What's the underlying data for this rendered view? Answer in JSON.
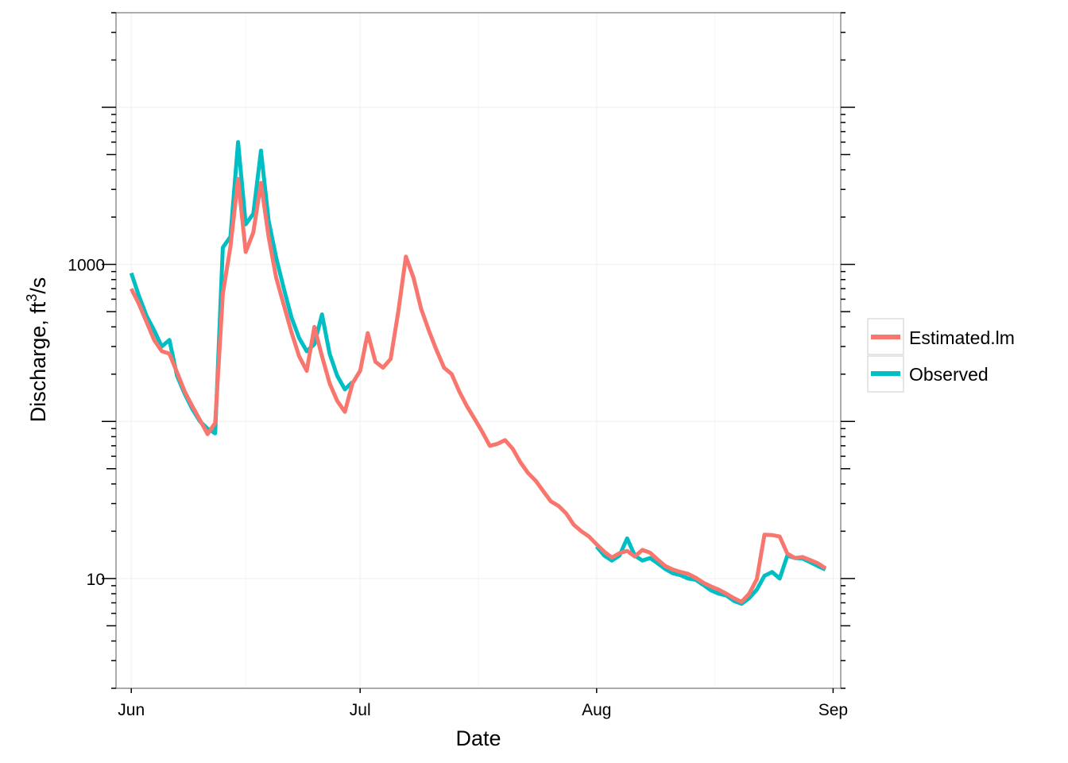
{
  "chart_data": {
    "type": "line",
    "title": "",
    "xlabel": "Date",
    "ylabel": "Discharge, ft",
    "ylabel_sup": "3",
    "ylabel_tail": "/s",
    "y_scale": "log10",
    "ylim": [
      2,
      40000
    ],
    "xlim": [
      "2014-05-30",
      "2014-09-02"
    ],
    "x_ticks": [
      {
        "date": "2014-06-01",
        "label": "Jun"
      },
      {
        "date": "2014-07-01",
        "label": "Jul"
      },
      {
        "date": "2014-08-01",
        "label": "Aug"
      },
      {
        "date": "2014-09-01",
        "label": "Sep"
      }
    ],
    "y_ticks": [
      {
        "value": 10,
        "label": "10"
      },
      {
        "value": 1000,
        "label": "1000"
      }
    ],
    "grid": true,
    "legend_position": "right",
    "series": [
      {
        "name": "Estimated.lm",
        "color": "#F8766D",
        "points": [
          [
            "2014-06-01",
            700
          ],
          [
            "2014-06-02",
            560
          ],
          [
            "2014-06-03",
            430
          ],
          [
            "2014-06-04",
            330
          ],
          [
            "2014-06-05",
            280
          ],
          [
            "2014-06-06",
            270
          ],
          [
            "2014-06-07",
            205
          ],
          [
            "2014-06-08",
            155
          ],
          [
            "2014-06-09",
            125
          ],
          [
            "2014-06-10",
            102
          ],
          [
            "2014-06-11",
            83
          ],
          [
            "2014-06-12",
            98
          ],
          [
            "2014-06-13",
            650
          ],
          [
            "2014-06-14",
            1300
          ],
          [
            "2014-06-15",
            3500
          ],
          [
            "2014-06-16",
            1200
          ],
          [
            "2014-06-17",
            1600
          ],
          [
            "2014-06-18",
            3300
          ],
          [
            "2014-06-19",
            1500
          ],
          [
            "2014-06-20",
            820
          ],
          [
            "2014-06-21",
            550
          ],
          [
            "2014-06-22",
            370
          ],
          [
            "2014-06-23",
            260
          ],
          [
            "2014-06-24",
            210
          ],
          [
            "2014-06-25",
            400
          ],
          [
            "2014-06-26",
            260
          ],
          [
            "2014-06-27",
            175
          ],
          [
            "2014-06-28",
            135
          ],
          [
            "2014-06-29",
            115
          ],
          [
            "2014-06-30",
            175
          ],
          [
            "2014-07-01",
            210
          ],
          [
            "2014-07-02",
            365
          ],
          [
            "2014-07-03",
            240
          ],
          [
            "2014-07-04",
            220
          ],
          [
            "2014-07-05",
            250
          ],
          [
            "2014-07-06",
            500
          ],
          [
            "2014-07-07",
            1120
          ],
          [
            "2014-07-08",
            820
          ],
          [
            "2014-07-09",
            520
          ],
          [
            "2014-07-10",
            380
          ],
          [
            "2014-07-11",
            285
          ],
          [
            "2014-07-12",
            220
          ],
          [
            "2014-07-13",
            200
          ],
          [
            "2014-07-14",
            155
          ],
          [
            "2014-07-15",
            125
          ],
          [
            "2014-07-16",
            104
          ],
          [
            "2014-07-17",
            86
          ],
          [
            "2014-07-18",
            70
          ],
          [
            "2014-07-19",
            72
          ],
          [
            "2014-07-20",
            76
          ],
          [
            "2014-07-21",
            67
          ],
          [
            "2014-07-22",
            55
          ],
          [
            "2014-07-23",
            47
          ],
          [
            "2014-07-24",
            42
          ],
          [
            "2014-07-25",
            36
          ],
          [
            "2014-07-26",
            31
          ],
          [
            "2014-07-27",
            29
          ],
          [
            "2014-07-28",
            26
          ],
          [
            "2014-07-29",
            22
          ],
          [
            "2014-07-30",
            20
          ],
          [
            "2014-07-31",
            18.5
          ],
          [
            "2014-08-01",
            16.5
          ],
          [
            "2014-08-02",
            14.8
          ],
          [
            "2014-08-03",
            13.6
          ],
          [
            "2014-08-04",
            14.5
          ],
          [
            "2014-08-05",
            15.0
          ],
          [
            "2014-08-06",
            13.8
          ],
          [
            "2014-08-07",
            15.2
          ],
          [
            "2014-08-08",
            14.6
          ],
          [
            "2014-08-09",
            13.2
          ],
          [
            "2014-08-10",
            12.0
          ],
          [
            "2014-08-11",
            11.4
          ],
          [
            "2014-08-12",
            11.0
          ],
          [
            "2014-08-13",
            10.7
          ],
          [
            "2014-08-14",
            10.1
          ],
          [
            "2014-08-15",
            9.4
          ],
          [
            "2014-08-16",
            8.9
          ],
          [
            "2014-08-17",
            8.5
          ],
          [
            "2014-08-18",
            8.0
          ],
          [
            "2014-08-19",
            7.5
          ],
          [
            "2014-08-20",
            7.1
          ],
          [
            "2014-08-21",
            8.0
          ],
          [
            "2014-08-22",
            9.9
          ],
          [
            "2014-08-23",
            19.0
          ],
          [
            "2014-08-24",
            18.9
          ],
          [
            "2014-08-25",
            18.5
          ],
          [
            "2014-08-26",
            14.4
          ],
          [
            "2014-08-27",
            13.5
          ],
          [
            "2014-08-28",
            13.7
          ],
          [
            "2014-08-29",
            13.1
          ],
          [
            "2014-08-30",
            12.5
          ],
          [
            "2014-08-31",
            11.6
          ]
        ]
      },
      {
        "name": "Observed",
        "color": "#00BFC4",
        "points": [
          [
            "2014-06-01",
            880
          ],
          [
            "2014-06-02",
            630
          ],
          [
            "2014-06-03",
            470
          ],
          [
            "2014-06-04",
            380
          ],
          [
            "2014-06-05",
            300
          ],
          [
            "2014-06-06",
            330
          ],
          [
            "2014-06-07",
            195
          ],
          [
            "2014-06-08",
            150
          ],
          [
            "2014-06-09",
            120
          ],
          [
            "2014-06-10",
            100
          ],
          [
            "2014-06-11",
            90
          ],
          [
            "2014-06-12",
            84
          ],
          [
            "2014-06-13",
            1280
          ],
          [
            "2014-06-14",
            1500
          ],
          [
            "2014-06-15",
            6000
          ],
          [
            "2014-06-16",
            1800
          ],
          [
            "2014-06-17",
            2100
          ],
          [
            "2014-06-18",
            5300
          ],
          [
            "2014-06-19",
            1900
          ],
          [
            "2014-06-20",
            1100
          ],
          [
            "2014-06-21",
            700
          ],
          [
            "2014-06-22",
            460
          ],
          [
            "2014-06-23",
            340
          ],
          [
            "2014-06-24",
            280
          ],
          [
            "2014-06-25",
            310
          ],
          [
            "2014-06-26",
            480
          ],
          [
            "2014-06-27",
            270
          ],
          [
            "2014-06-28",
            195
          ],
          [
            "2014-06-29",
            160
          ],
          [
            "2014-06-30",
            178
          ],
          [
            "2014-08-01",
            16.0
          ],
          [
            "2014-08-02",
            14.0
          ],
          [
            "2014-08-03",
            13.0
          ],
          [
            "2014-08-04",
            14.0
          ],
          [
            "2014-08-05",
            18.0
          ],
          [
            "2014-08-06",
            14.0
          ],
          [
            "2014-08-07",
            13.0
          ],
          [
            "2014-08-08",
            13.5
          ],
          [
            "2014-08-09",
            12.5
          ],
          [
            "2014-08-10",
            11.5
          ],
          [
            "2014-08-11",
            10.8
          ],
          [
            "2014-08-12",
            10.5
          ],
          [
            "2014-08-13",
            10.0
          ],
          [
            "2014-08-14",
            9.8
          ],
          [
            "2014-08-15",
            9.1
          ],
          [
            "2014-08-16",
            8.4
          ],
          [
            "2014-08-17",
            8.0
          ],
          [
            "2014-08-18",
            7.8
          ],
          [
            "2014-08-19",
            7.2
          ],
          [
            "2014-08-20",
            6.9
          ],
          [
            "2014-08-21",
            7.5
          ],
          [
            "2014-08-22",
            8.5
          ],
          [
            "2014-08-23",
            10.4
          ],
          [
            "2014-08-24",
            11.0
          ],
          [
            "2014-08-25",
            10.0
          ],
          [
            "2014-08-26",
            14.0
          ],
          [
            "2014-08-27",
            13.5
          ],
          [
            "2014-08-28",
            13.4
          ],
          [
            "2014-08-29",
            12.7
          ],
          [
            "2014-08-30",
            12.0
          ],
          [
            "2014-08-31",
            11.4
          ]
        ]
      }
    ]
  }
}
